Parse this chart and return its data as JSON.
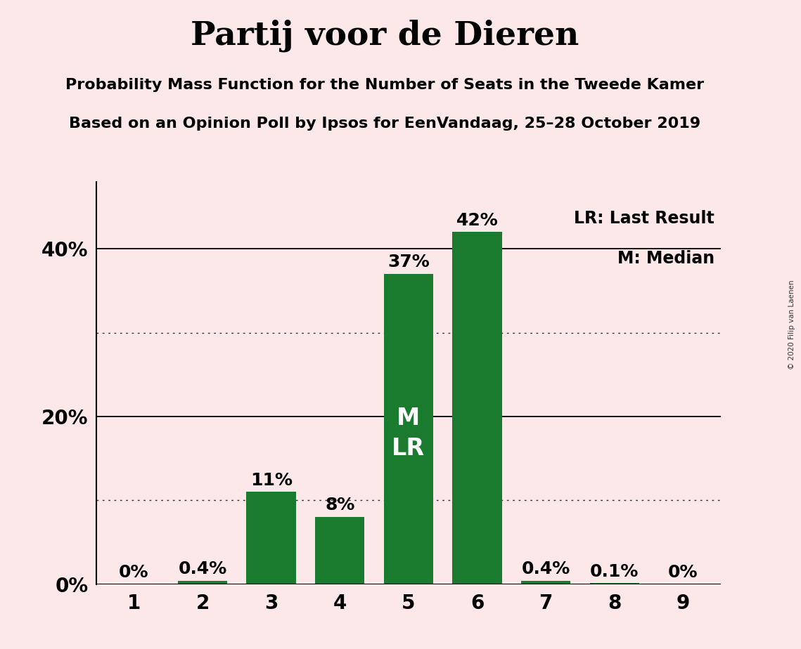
{
  "title": "Partij voor de Dieren",
  "subtitle1": "Probability Mass Function for the Number of Seats in the Tweede Kamer",
  "subtitle2": "Based on an Opinion Poll by Ipsos for EenVandaag, 25–28 October 2019",
  "copyright": "© 2020 Filip van Laenen",
  "seats": [
    1,
    2,
    3,
    4,
    5,
    6,
    7,
    8,
    9
  ],
  "probabilities": [
    0.0,
    0.4,
    11.0,
    8.0,
    37.0,
    42.0,
    0.4,
    0.1,
    0.0
  ],
  "bar_color": "#1a7a2e",
  "background_color": "#fce8e8",
  "label_above": [
    "0%",
    "0.4%",
    "11%",
    "8%",
    "37%",
    "42%",
    "0.4%",
    "0.1%",
    "0%"
  ],
  "median_seat": 5,
  "last_result_seat": 5,
  "median_label": "M",
  "lr_label": "LR",
  "solid_gridlines": [
    20,
    40
  ],
  "dotted_gridlines": [
    10,
    30
  ],
  "ylim": [
    0,
    48
  ],
  "legend_text1": "LR: Last Result",
  "legend_text2": "M: Median",
  "title_fontsize": 34,
  "subtitle_fontsize": 16,
  "bar_label_fontsize": 18,
  "axis_tick_fontsize": 20,
  "inside_bar_fontsize": 24,
  "legend_fontsize": 17
}
